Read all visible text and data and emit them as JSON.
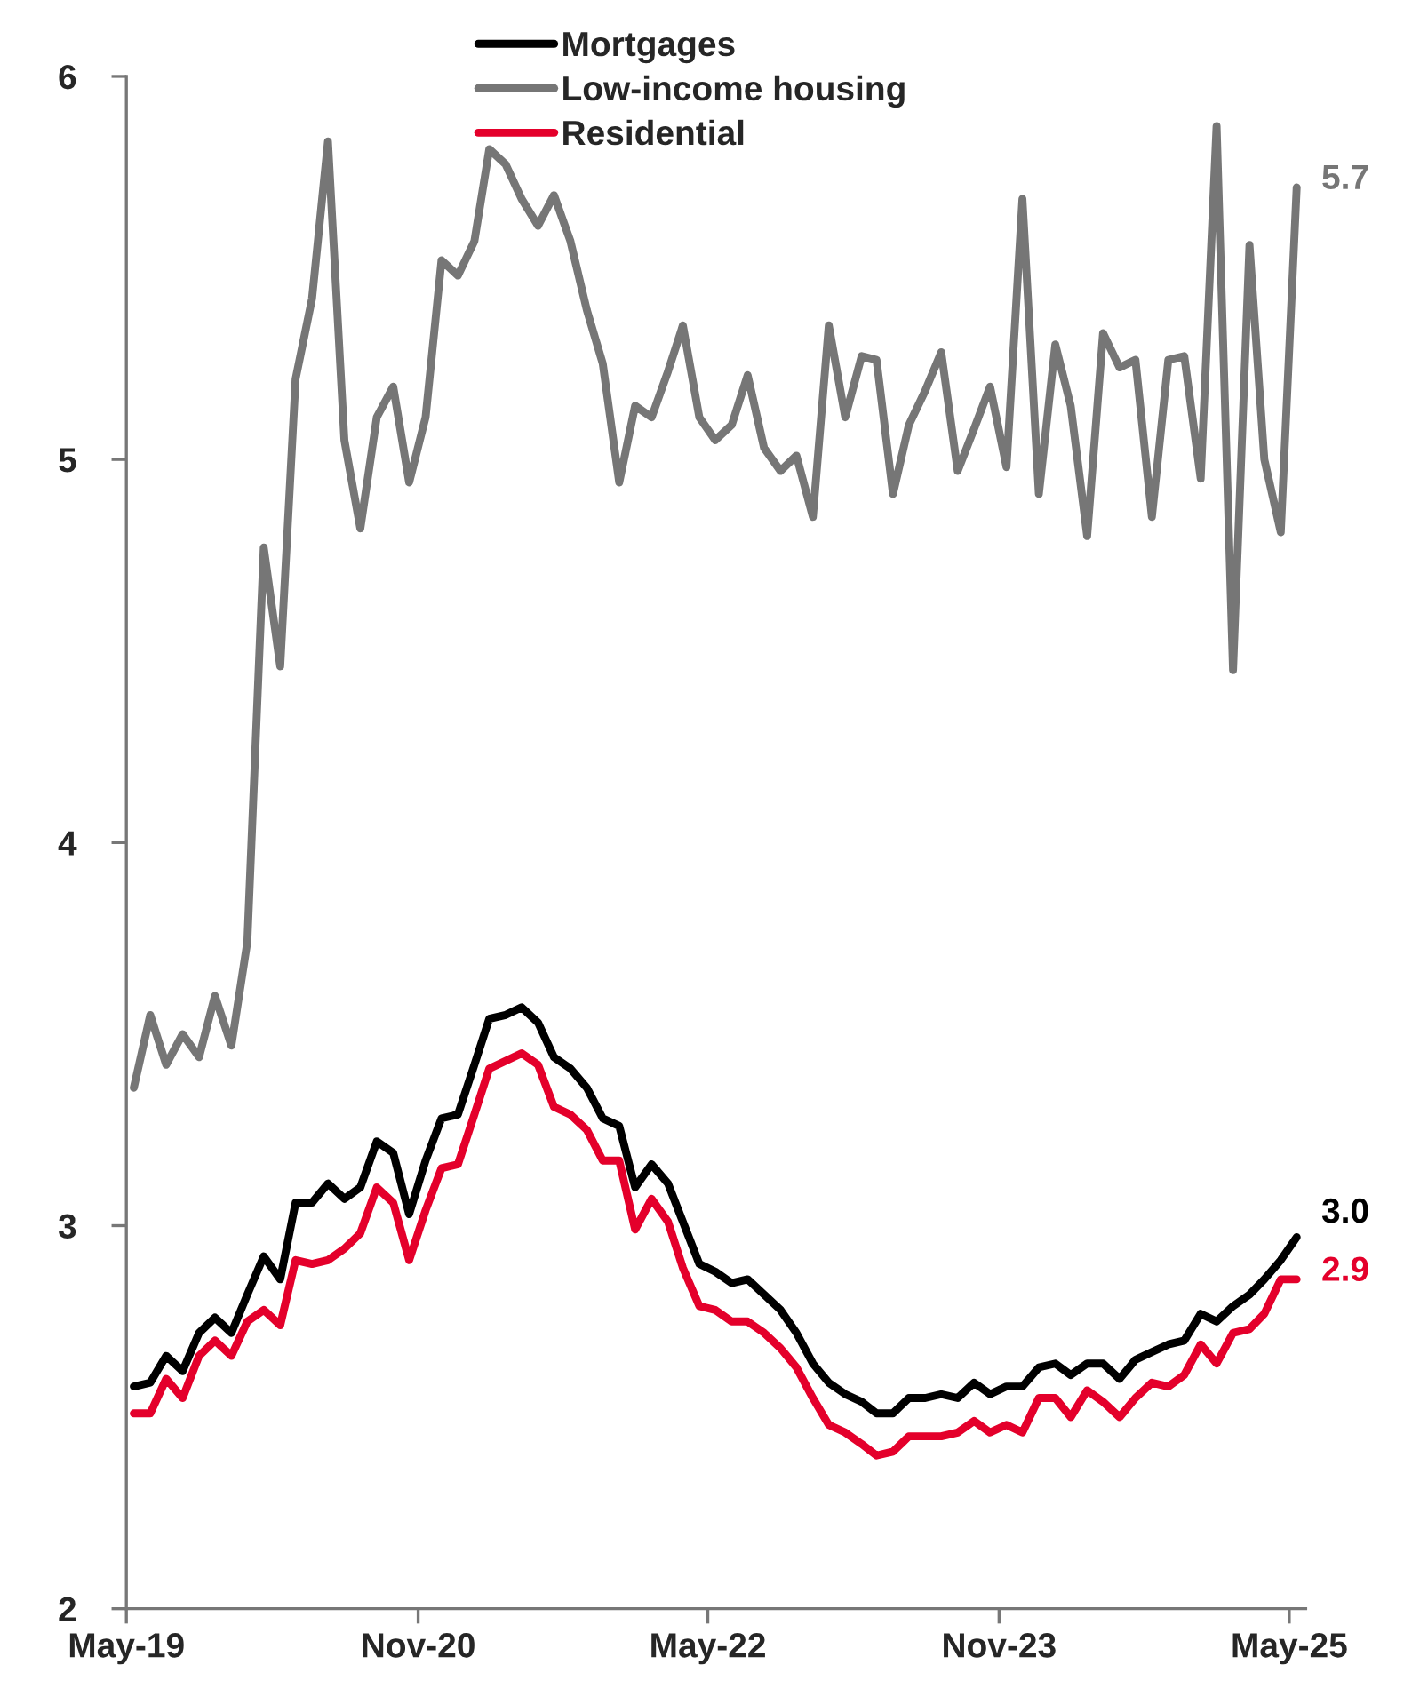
{
  "chart_data": {
    "type": "line",
    "x": [
      "2019-05-15",
      "2019-06-15",
      "2019-07-15",
      "2019-08-15",
      "2019-09-15",
      "2019-10-15",
      "2019-11-15",
      "2019-12-15",
      "2020-01-15",
      "2020-02-15",
      "2020-03-15",
      "2020-04-15",
      "2020-05-15",
      "2020-06-15",
      "2020-07-15",
      "2020-08-15",
      "2020-09-15",
      "2020-10-15",
      "2020-11-15",
      "2020-12-15",
      "2021-01-15",
      "2021-02-15",
      "2021-03-15",
      "2021-04-15",
      "2021-05-15",
      "2021-06-15",
      "2021-07-15",
      "2021-08-15",
      "2021-09-15",
      "2021-10-15",
      "2021-11-15",
      "2021-12-15",
      "2022-01-15",
      "2022-02-15",
      "2022-03-15",
      "2022-04-15",
      "2022-05-15",
      "2022-06-15",
      "2022-07-15",
      "2022-08-15",
      "2022-09-15",
      "2022-10-15",
      "2022-11-15",
      "2022-12-15",
      "2023-01-15",
      "2023-02-15",
      "2023-03-15",
      "2023-04-15",
      "2023-05-15",
      "2023-06-15",
      "2023-07-15",
      "2023-08-15",
      "2023-09-15",
      "2023-10-15",
      "2023-11-15",
      "2023-12-15",
      "2024-01-15",
      "2024-02-15",
      "2024-03-15",
      "2024-04-15",
      "2024-05-15",
      "2024-06-15",
      "2024-07-15",
      "2024-08-15",
      "2024-09-15",
      "2024-10-15",
      "2024-11-15",
      "2024-12-15",
      "2025-01-15",
      "2025-02-15",
      "2025-03-15",
      "2025-04-15",
      "2025-05-15"
    ],
    "series": [
      {
        "name": "Mortgages",
        "color": "#000000",
        "values": [
          2.58,
          2.59,
          2.66,
          2.62,
          2.72,
          2.76,
          2.72,
          2.82,
          2.92,
          2.86,
          3.06,
          3.06,
          3.11,
          3.07,
          3.1,
          3.22,
          3.19,
          3.03,
          3.17,
          3.28,
          3.29,
          3.42,
          3.54,
          3.55,
          3.57,
          3.53,
          3.44,
          3.41,
          3.36,
          3.28,
          3.26,
          3.1,
          3.16,
          3.11,
          3.01,
          2.9,
          2.88,
          2.85,
          2.86,
          2.82,
          2.78,
          2.72,
          2.64,
          2.59,
          2.56,
          2.54,
          2.51,
          2.51,
          2.55,
          2.55,
          2.56,
          2.55,
          2.59,
          2.56,
          2.58,
          2.58,
          2.63,
          2.64,
          2.61,
          2.64,
          2.64,
          2.6,
          2.65,
          2.67,
          2.69,
          2.7,
          2.77,
          2.75,
          2.79,
          2.82,
          2.86,
          2.91,
          2.97
        ],
        "value_labels": [
          null,
          null,
          null,
          null,
          null,
          null,
          null,
          null,
          null,
          null,
          null,
          null,
          null,
          null,
          null,
          null,
          null,
          null,
          null,
          null,
          null,
          null,
          null,
          null,
          null,
          null,
          null,
          null,
          null,
          null,
          null,
          null,
          null,
          null,
          null,
          null,
          null,
          null,
          null,
          null,
          null,
          null,
          null,
          null,
          null,
          null,
          null,
          null,
          null,
          null,
          null,
          null,
          null,
          null,
          null,
          null,
          null,
          null,
          null,
          null,
          null,
          null,
          null,
          null,
          null,
          null,
          null,
          null,
          null,
          null,
          null,
          null,
          "3.0"
        ]
      },
      {
        "name": "Low-income housing",
        "color": "#767676",
        "values": [
          3.36,
          3.55,
          3.42,
          3.5,
          3.44,
          3.6,
          3.47,
          3.74,
          4.77,
          4.46,
          5.21,
          5.42,
          5.83,
          5.05,
          4.82,
          5.11,
          5.19,
          4.94,
          5.11,
          5.52,
          5.48,
          5.57,
          5.81,
          5.77,
          5.68,
          5.61,
          5.69,
          5.57,
          5.39,
          5.25,
          4.94,
          5.14,
          5.11,
          5.23,
          5.35,
          5.11,
          5.05,
          5.09,
          5.22,
          5.03,
          4.97,
          5.01,
          4.85,
          5.35,
          5.11,
          5.27,
          5.26,
          4.91,
          5.09,
          5.18,
          5.28,
          4.97,
          5.08,
          5.19,
          4.98,
          5.68,
          4.91,
          5.3,
          5.14,
          4.8,
          5.33,
          5.24,
          5.26,
          4.85,
          5.26,
          5.27,
          4.95,
          5.87,
          4.45,
          5.56,
          5.0,
          4.81,
          5.71
        ],
        "value_labels": [
          null,
          null,
          null,
          null,
          null,
          null,
          null,
          null,
          null,
          null,
          null,
          null,
          null,
          null,
          null,
          null,
          null,
          null,
          null,
          null,
          null,
          null,
          null,
          null,
          null,
          null,
          null,
          null,
          null,
          null,
          null,
          null,
          null,
          null,
          null,
          null,
          null,
          null,
          null,
          null,
          null,
          null,
          null,
          null,
          null,
          null,
          null,
          null,
          null,
          null,
          null,
          null,
          null,
          null,
          null,
          null,
          null,
          null,
          null,
          null,
          null,
          null,
          null,
          null,
          null,
          null,
          null,
          null,
          null,
          null,
          null,
          null,
          "5.7"
        ]
      },
      {
        "name": "Residential",
        "color": "#e4002b",
        "values": [
          2.51,
          2.51,
          2.6,
          2.55,
          2.66,
          2.7,
          2.66,
          2.75,
          2.78,
          2.74,
          2.91,
          2.9,
          2.91,
          2.94,
          2.98,
          3.1,
          3.06,
          2.91,
          3.04,
          3.15,
          3.16,
          3.29,
          3.41,
          3.43,
          3.45,
          3.42,
          3.31,
          3.29,
          3.25,
          3.17,
          3.17,
          2.99,
          3.07,
          3.01,
          2.89,
          2.79,
          2.78,
          2.75,
          2.75,
          2.72,
          2.68,
          2.63,
          2.55,
          2.48,
          2.46,
          2.43,
          2.4,
          2.41,
          2.45,
          2.45,
          2.45,
          2.46,
          2.49,
          2.46,
          2.48,
          2.46,
          2.55,
          2.55,
          2.5,
          2.57,
          2.54,
          2.5,
          2.55,
          2.59,
          2.58,
          2.61,
          2.69,
          2.64,
          2.72,
          2.73,
          2.77,
          2.86,
          2.86
        ],
        "value_labels": [
          null,
          null,
          null,
          null,
          null,
          null,
          null,
          null,
          null,
          null,
          null,
          null,
          null,
          null,
          null,
          null,
          null,
          null,
          null,
          null,
          null,
          null,
          null,
          null,
          null,
          null,
          null,
          null,
          null,
          null,
          null,
          null,
          null,
          null,
          null,
          null,
          null,
          null,
          null,
          null,
          null,
          null,
          null,
          null,
          null,
          null,
          null,
          null,
          null,
          null,
          null,
          null,
          null,
          null,
          null,
          null,
          null,
          null,
          null,
          null,
          null,
          null,
          null,
          null,
          null,
          null,
          null,
          null,
          null,
          null,
          null,
          null,
          "2.9"
        ]
      }
    ],
    "xlim": [
      "2019-05-01",
      "2025-06-01"
    ],
    "xticks": [
      {
        "value": "2019-05-01",
        "label": "May-19"
      },
      {
        "value": "2020-11-01",
        "label": "Nov-20"
      },
      {
        "value": "2022-05-01",
        "label": "May-22"
      },
      {
        "value": "2023-11-01",
        "label": "Nov-23"
      },
      {
        "value": "2025-05-01",
        "label": "May-25"
      }
    ],
    "ylim": [
      2,
      6
    ],
    "yticks": [
      2,
      3,
      4,
      5,
      6
    ],
    "grid": false,
    "legend": "top",
    "marker": "none",
    "line_style": "solid"
  }
}
